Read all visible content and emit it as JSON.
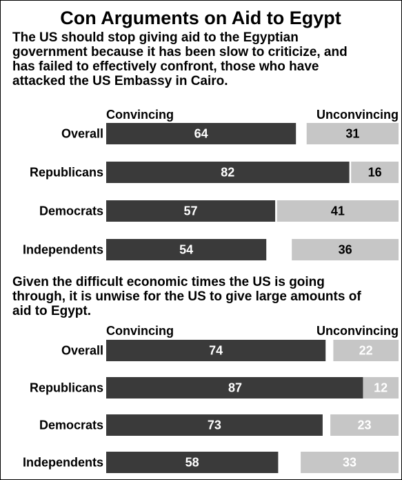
{
  "chart_data": {
    "type": "bar",
    "title": "Con Arguments on Aid to Egypt",
    "colors": {
      "convincing": "#3a3a3a",
      "unconvincing": "#c6c6c6",
      "convincing_label": "#ffffff",
      "unconvincing_label_panel1": "#000000",
      "unconvincing_label_panel2": "#ffffff"
    },
    "panels": [
      {
        "statement": [
          "The US should stop giving aid to the Egyptian",
          "government because it has been slow to criticize, and",
          "has failed to effectively confront, those who have",
          "attacked the US Embassy in Cairo."
        ],
        "categories": [
          "Overall",
          "Republicans",
          "Democrats",
          "Independents"
        ],
        "series": [
          {
            "name": "Convincing",
            "values": [
              64,
              82,
              57,
              54
            ]
          },
          {
            "name": "Unconvincing",
            "values": [
              31,
              16,
              41,
              36
            ]
          }
        ]
      },
      {
        "statement": [
          "Given the difficult economic times the US is going",
          "through, it is unwise for the US to give large amounts of",
          "aid to Egypt."
        ],
        "categories": [
          "Overall",
          "Republicans",
          "Democrats",
          "Independents"
        ],
        "series": [
          {
            "name": "Convincing",
            "values": [
              74,
              87,
              73,
              58
            ]
          },
          {
            "name": "Unconvincing",
            "values": [
              22,
              12,
              23,
              33
            ]
          }
        ]
      }
    ]
  }
}
